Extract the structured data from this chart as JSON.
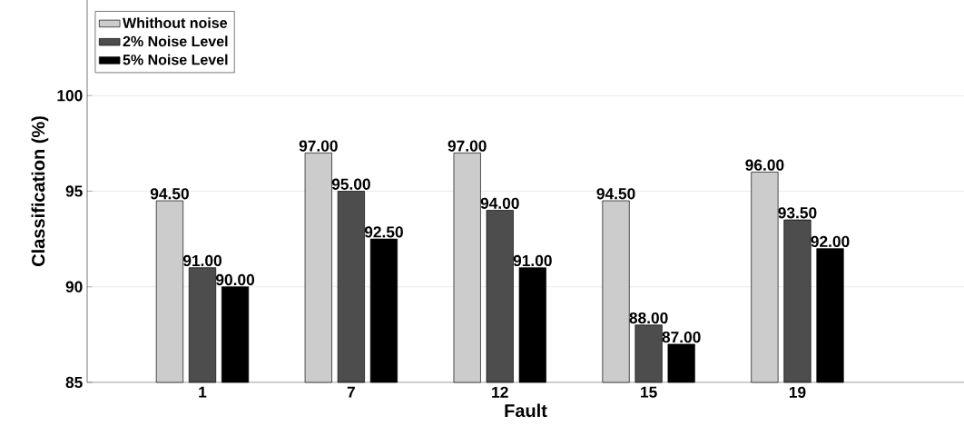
{
  "chart_data": {
    "type": "bar",
    "xlabel": "Fault",
    "ylabel": "Classification (%)",
    "categories": [
      "1",
      "7",
      "12",
      "15",
      "19"
    ],
    "series": [
      {
        "name": "Whithout noise",
        "color": "#cccccc",
        "values": [
          94.5,
          97,
          97,
          94.5,
          96
        ],
        "value_labels": [
          "94.50",
          "97.00",
          "97.00",
          "94.50",
          "96.00"
        ]
      },
      {
        "name": "2% Noise Level",
        "color": "#4d4d4d",
        "values": [
          91,
          95,
          94,
          88,
          93.5
        ],
        "value_labels": [
          "91.00",
          "95.00",
          "94.00",
          "88.00",
          "93.50"
        ]
      },
      {
        "name": "5% Noise Level",
        "color": "#000000",
        "values": [
          90,
          92.5,
          91,
          87,
          92
        ],
        "value_labels": [
          "90.00",
          "92.50",
          "91.00",
          "87.00",
          "92.00"
        ]
      }
    ],
    "ylim": [
      85,
      105
    ],
    "yticks": [
      85,
      90,
      95,
      100
    ],
    "grid": "y",
    "legend": "top left"
  }
}
